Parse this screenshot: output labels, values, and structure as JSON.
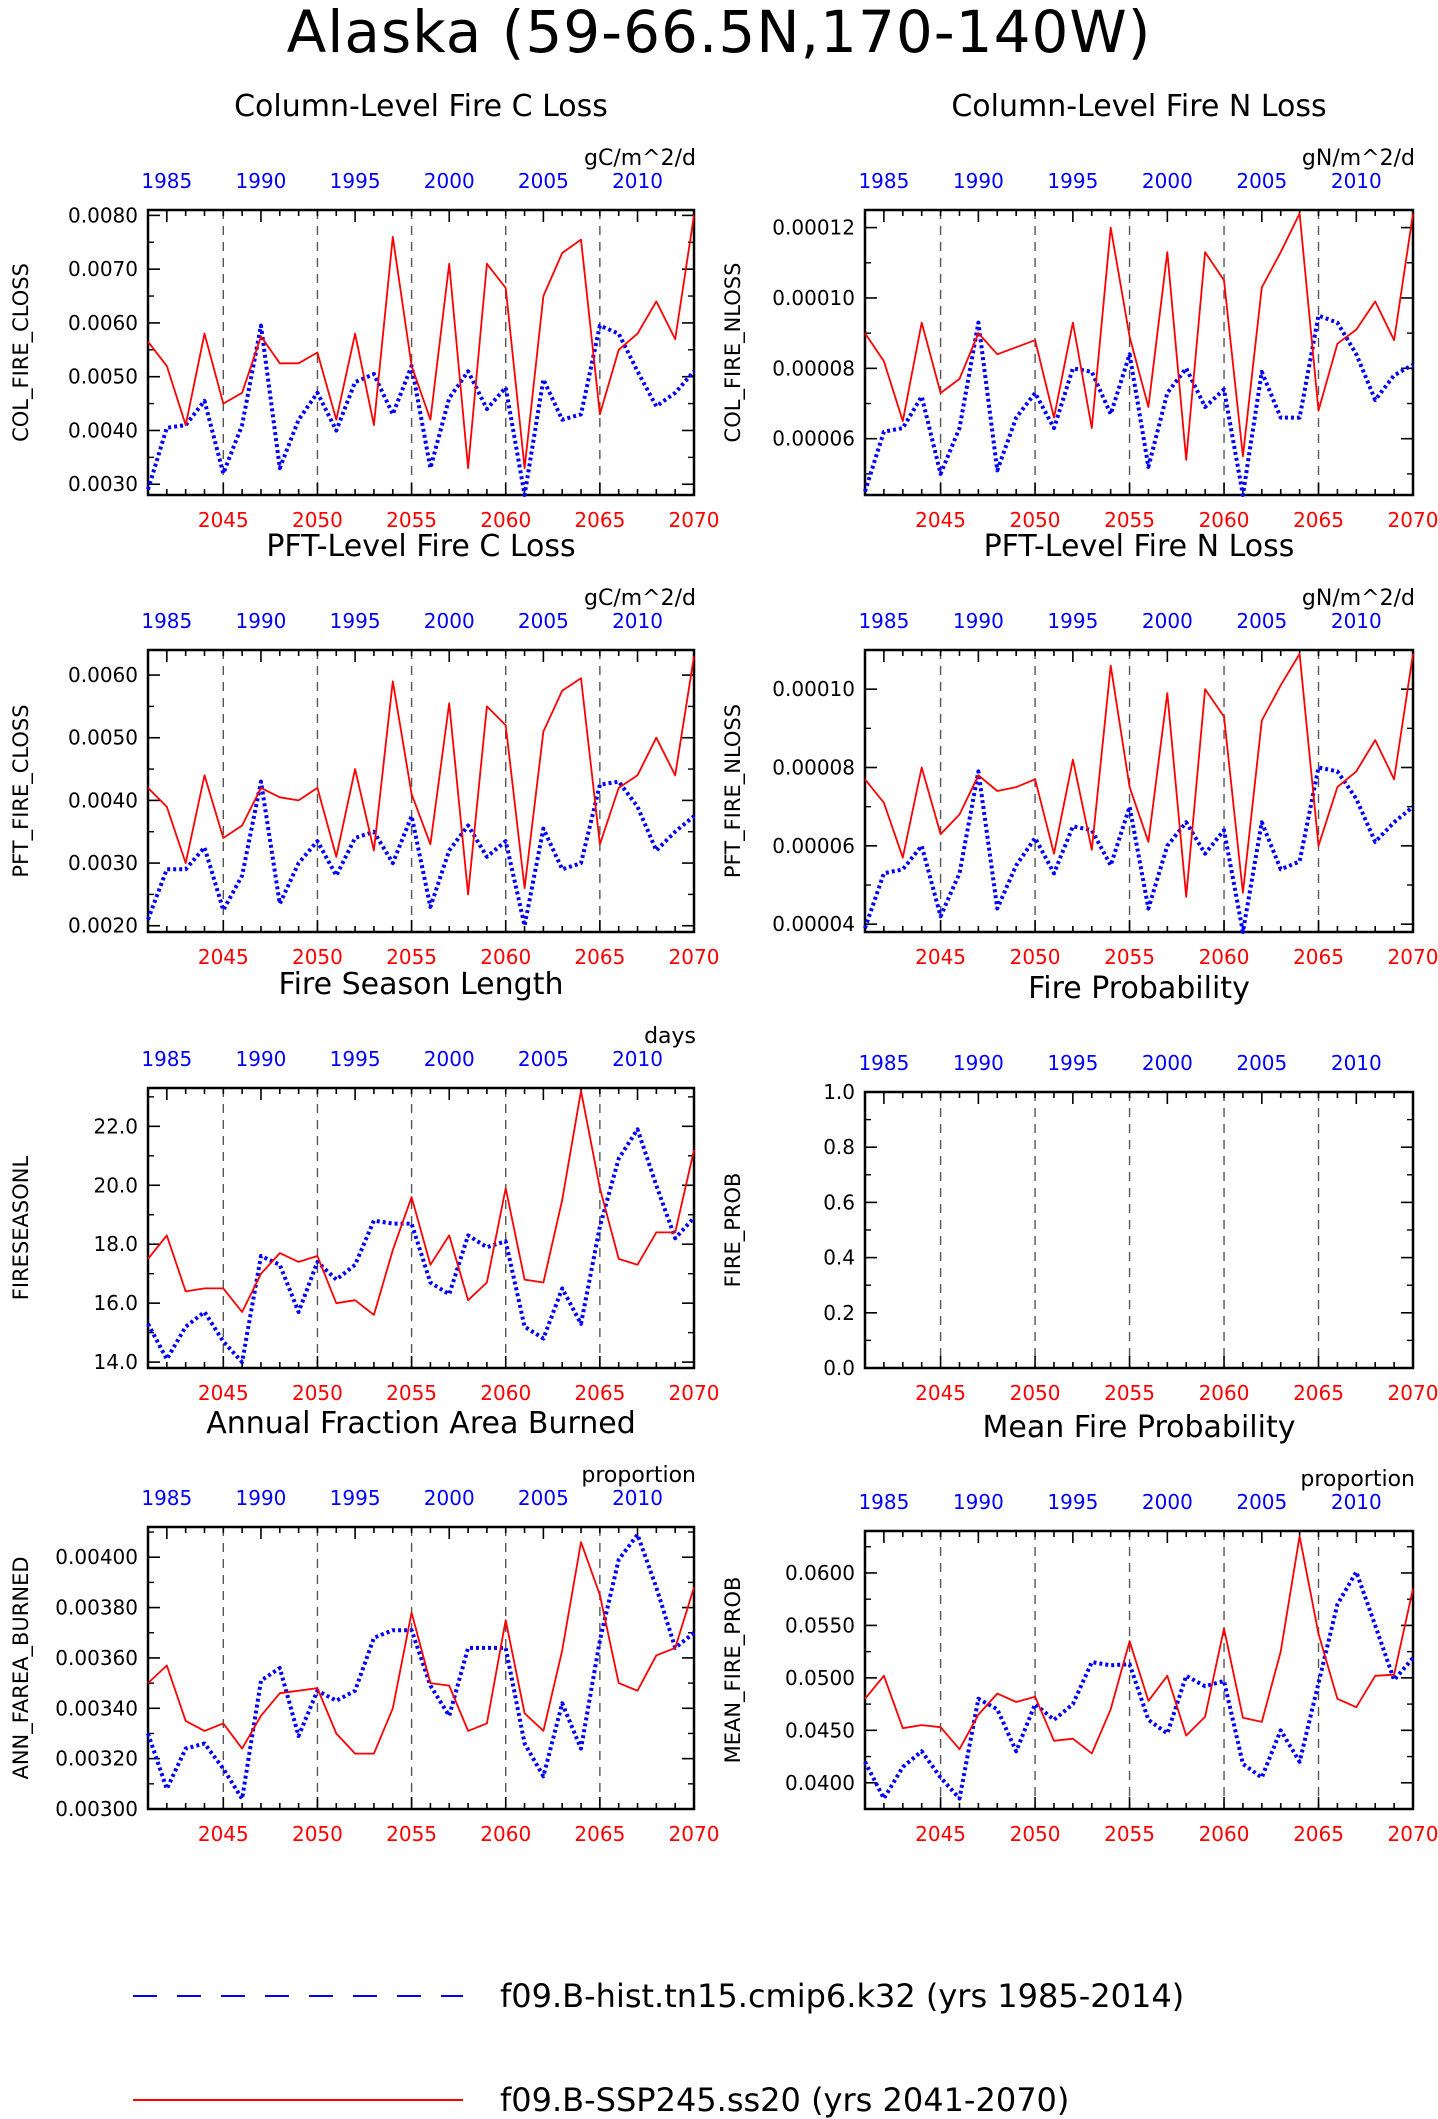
{
  "figure": {
    "title": "Alaska (59-66.5N,170-140W)"
  },
  "colors": {
    "hist": "#0000ff",
    "ssp": "#ff0000",
    "axis": "#000000",
    "grid": "#555555"
  },
  "legend": {
    "items": [
      {
        "label": "f09.B-hist.tn15.cmip6.k32 (yrs 1985-2014)",
        "color": "#0000ff",
        "style": "dashed"
      },
      {
        "label": "f09.B-SSP245.ss20 (yrs 2041-2070)",
        "color": "#ff0000",
        "style": "solid"
      }
    ]
  },
  "chart_data": [
    {
      "type": "line",
      "title": "Column-Level Fire C Loss",
      "units": "gC/m^2/d",
      "ylabel": "COL_FIRE_CLOSS",
      "ylim": [
        0.0028,
        0.0081
      ],
      "yticks": [
        0.003,
        0.004,
        0.005,
        0.006,
        0.007,
        0.008
      ],
      "ytick_labels": [
        "0.0030",
        "0.0040",
        "0.0050",
        "0.0060",
        "0.0070",
        "0.0080"
      ],
      "top_axis": {
        "range": [
          1984,
          2013
        ],
        "ticks": [
          1985,
          1990,
          1995,
          2000,
          2005,
          2010
        ]
      },
      "bottom_axis": {
        "range": [
          2041,
          2070
        ],
        "ticks": [
          2045,
          2050,
          2055,
          2060,
          2065,
          2070
        ]
      },
      "series": [
        {
          "name": "f09.B-hist.tn15.cmip6.k32",
          "color": "#0000ff",
          "dashed": true,
          "values": [
            0.0029,
            0.00405,
            0.0041,
            0.00455,
            0.0032,
            0.0041,
            0.00595,
            0.0033,
            0.0042,
            0.0047,
            0.004,
            0.0049,
            0.00505,
            0.0043,
            0.0052,
            0.0033,
            0.0046,
            0.0051,
            0.0044,
            0.0048,
            0.0028,
            0.00495,
            0.0042,
            0.0043,
            0.00595,
            0.0058,
            0.0051,
            0.00445,
            0.0047,
            0.0051
          ]
        },
        {
          "name": "f09.B-SSP245.ss20",
          "color": "#ff0000",
          "dashed": false,
          "values": [
            0.00565,
            0.0052,
            0.0041,
            0.0058,
            0.0045,
            0.0047,
            0.00575,
            0.00525,
            0.00525,
            0.00545,
            0.0042,
            0.0058,
            0.0041,
            0.0076,
            0.0052,
            0.0042,
            0.0071,
            0.0033,
            0.0071,
            0.00665,
            0.0033,
            0.0065,
            0.0073,
            0.00755,
            0.0043,
            0.0055,
            0.0058,
            0.0064,
            0.0057,
            0.008
          ]
        }
      ]
    },
    {
      "type": "line",
      "title": "Column-Level Fire N Loss",
      "units": "gN/m^2/d",
      "ylabel": "COL_FIRE_NLOSS",
      "ylim": [
        4.4e-05,
        0.000125
      ],
      "yticks": [
        6e-05,
        8e-05,
        0.0001,
        0.00012
      ],
      "ytick_labels": [
        "0.00006",
        "0.00008",
        "0.00010",
        "0.00012"
      ],
      "top_axis": {
        "range": [
          1984,
          2013
        ],
        "ticks": [
          1985,
          1990,
          1995,
          2000,
          2005,
          2010
        ]
      },
      "bottom_axis": {
        "range": [
          2041,
          2070
        ],
        "ticks": [
          2045,
          2050,
          2055,
          2060,
          2065,
          2070
        ]
      },
      "series": [
        {
          "name": "f09.B-hist.tn15.cmip6.k32",
          "color": "#0000ff",
          "dashed": true,
          "values": [
            4.5e-05,
            6.2e-05,
            6.3e-05,
            7.2e-05,
            5e-05,
            6.3e-05,
            9.3e-05,
            5.1e-05,
            6.6e-05,
            7.3e-05,
            6.3e-05,
            8e-05,
            7.9e-05,
            6.7e-05,
            8.4e-05,
            5.2e-05,
            7.3e-05,
            8e-05,
            6.9e-05,
            7.4e-05,
            4.4e-05,
            7.9e-05,
            6.6e-05,
            6.6e-05,
            9.5e-05,
            9.3e-05,
            8.4e-05,
            7.1e-05,
            7.8e-05,
            8.1e-05
          ]
        },
        {
          "name": "f09.B-SSP245.ss20",
          "color": "#ff0000",
          "dashed": false,
          "values": [
            9e-05,
            8.2e-05,
            6.5e-05,
            9.3e-05,
            7.3e-05,
            7.7e-05,
            9e-05,
            8.4e-05,
            8.6e-05,
            8.8e-05,
            6.6e-05,
            9.3e-05,
            6.3e-05,
            0.00012,
            8.9e-05,
            6.9e-05,
            0.000113,
            5.4e-05,
            0.000113,
            0.000105,
            5.5e-05,
            0.000103,
            0.000113,
            0.000124,
            6.8e-05,
            8.7e-05,
            9.1e-05,
            9.9e-05,
            8.8e-05,
            0.000124
          ]
        }
      ]
    },
    {
      "type": "line",
      "title": "PFT-Level Fire C Loss",
      "units": "gC/m^2/d",
      "ylabel": "PFT_FIRE_CLOSS",
      "ylim": [
        0.0019,
        0.0064
      ],
      "yticks": [
        0.002,
        0.003,
        0.004,
        0.005,
        0.006
      ],
      "ytick_labels": [
        "0.0020",
        "0.0030",
        "0.0040",
        "0.0050",
        "0.0060"
      ],
      "top_axis": {
        "range": [
          1984,
          2013
        ],
        "ticks": [
          1985,
          1990,
          1995,
          2000,
          2005,
          2010
        ]
      },
      "bottom_axis": {
        "range": [
          2041,
          2070
        ],
        "ticks": [
          2045,
          2050,
          2055,
          2060,
          2065,
          2070
        ]
      },
      "series": [
        {
          "name": "f09.B-hist.tn15.cmip6.k32",
          "color": "#0000ff",
          "dashed": true,
          "values": [
            0.0021,
            0.0029,
            0.0029,
            0.00325,
            0.00225,
            0.0028,
            0.0043,
            0.00235,
            0.003,
            0.00335,
            0.0028,
            0.0034,
            0.0035,
            0.003,
            0.00375,
            0.0023,
            0.0032,
            0.0036,
            0.0031,
            0.00335,
            0.002,
            0.00355,
            0.0029,
            0.003,
            0.00425,
            0.0043,
            0.0039,
            0.0032,
            0.0035,
            0.00375
          ]
        },
        {
          "name": "f09.B-SSP245.ss20",
          "color": "#ff0000",
          "dashed": false,
          "values": [
            0.0042,
            0.0039,
            0.003,
            0.0044,
            0.0034,
            0.0036,
            0.0042,
            0.00405,
            0.004,
            0.0042,
            0.0031,
            0.0045,
            0.0032,
            0.0059,
            0.0041,
            0.0033,
            0.00555,
            0.0025,
            0.0055,
            0.0052,
            0.0026,
            0.0051,
            0.00575,
            0.00595,
            0.0033,
            0.0042,
            0.0044,
            0.005,
            0.0044,
            0.0063
          ]
        }
      ]
    },
    {
      "type": "line",
      "title": "PFT-Level Fire N Loss",
      "units": "gN/m^2/d",
      "ylabel": "PFT_FIRE_NLOSS",
      "ylim": [
        3.8e-05,
        0.00011
      ],
      "yticks": [
        4e-05,
        6e-05,
        8e-05,
        0.0001
      ],
      "ytick_labels": [
        "0.00004",
        "0.00006",
        "0.00008",
        "0.00010"
      ],
      "top_axis": {
        "range": [
          1984,
          2013
        ],
        "ticks": [
          1985,
          1990,
          1995,
          2000,
          2005,
          2010
        ]
      },
      "bottom_axis": {
        "range": [
          2041,
          2070
        ],
        "ticks": [
          2045,
          2050,
          2055,
          2060,
          2065,
          2070
        ]
      },
      "series": [
        {
          "name": "f09.B-hist.tn15.cmip6.k32",
          "color": "#0000ff",
          "dashed": true,
          "values": [
            3.9e-05,
            5.3e-05,
            5.4e-05,
            6e-05,
            4.2e-05,
            5.3e-05,
            7.9e-05,
            4.4e-05,
            5.5e-05,
            6.2e-05,
            5.3e-05,
            6.5e-05,
            6.4e-05,
            5.5e-05,
            7e-05,
            4.4e-05,
            6e-05,
            6.6e-05,
            5.8e-05,
            6.4e-05,
            3.8e-05,
            6.6e-05,
            5.4e-05,
            5.6e-05,
            8e-05,
            7.9e-05,
            7.2e-05,
            6.1e-05,
            6.6e-05,
            7e-05
          ]
        },
        {
          "name": "f09.B-SSP245.ss20",
          "color": "#ff0000",
          "dashed": false,
          "values": [
            7.7e-05,
            7.1e-05,
            5.7e-05,
            8e-05,
            6.3e-05,
            6.8e-05,
            7.8e-05,
            7.4e-05,
            7.5e-05,
            7.7e-05,
            5.8e-05,
            8.2e-05,
            5.9e-05,
            0.000106,
            7.5e-05,
            6.1e-05,
            9.9e-05,
            4.7e-05,
            0.0001,
            9.3e-05,
            4.8e-05,
            9.2e-05,
            0.000101,
            0.000109,
            6e-05,
            7.5e-05,
            7.9e-05,
            8.7e-05,
            7.7e-05,
            0.000109
          ]
        }
      ]
    },
    {
      "type": "line",
      "title": "Fire Season Length",
      "units": "days",
      "ylabel": "FIRESEASONL",
      "ylim": [
        13.8,
        23.3
      ],
      "yticks": [
        14,
        16,
        18,
        20,
        22
      ],
      "ytick_labels": [
        "14.0",
        "16.0",
        "18.0",
        "20.0",
        "22.0"
      ],
      "top_axis": {
        "range": [
          1984,
          2013
        ],
        "ticks": [
          1985,
          1990,
          1995,
          2000,
          2005,
          2010
        ]
      },
      "bottom_axis": {
        "range": [
          2041,
          2070
        ],
        "ticks": [
          2045,
          2050,
          2055,
          2060,
          2065,
          2070
        ]
      },
      "series": [
        {
          "name": "f09.B-hist.tn15.cmip6.k32",
          "color": "#0000ff",
          "dashed": true,
          "values": [
            15.3,
            14.1,
            15.2,
            15.7,
            14.7,
            14.0,
            17.6,
            17.3,
            15.7,
            17.4,
            16.8,
            17.3,
            18.8,
            18.7,
            18.7,
            16.7,
            16.3,
            18.3,
            17.9,
            18.1,
            15.2,
            14.8,
            16.5,
            15.3,
            18.6,
            20.9,
            21.9,
            20.0,
            18.2,
            18.9
          ]
        },
        {
          "name": "f09.B-SSP245.ss20",
          "color": "#ff0000",
          "dashed": false,
          "values": [
            17.5,
            18.3,
            16.4,
            16.5,
            16.5,
            15.7,
            17.0,
            17.7,
            17.4,
            17.6,
            16.0,
            16.1,
            15.6,
            17.8,
            19.6,
            17.3,
            18.3,
            16.1,
            16.7,
            19.9,
            16.8,
            16.7,
            19.5,
            23.2,
            19.9,
            17.5,
            17.3,
            18.4,
            18.4,
            21.2
          ]
        }
      ]
    },
    {
      "type": "line",
      "title": "Fire Probability",
      "units": "",
      "ylabel": "FIRE_PROB",
      "ylim": [
        0.0,
        1.0
      ],
      "yticks": [
        0.0,
        0.2,
        0.4,
        0.6,
        0.8,
        1.0
      ],
      "ytick_labels": [
        "0.0",
        "0.2",
        "0.4",
        "0.6",
        "0.8",
        "1.0"
      ],
      "top_axis": {
        "range": [
          1984,
          2013
        ],
        "ticks": [
          1985,
          1990,
          1995,
          2000,
          2005,
          2010
        ]
      },
      "bottom_axis": {
        "range": [
          2041,
          2070
        ],
        "ticks": [
          2045,
          2050,
          2055,
          2060,
          2065,
          2070
        ]
      },
      "series": []
    },
    {
      "type": "line",
      "title": "Annual Fraction Area Burned",
      "units": "proportion",
      "ylabel": "ANN_FAREA_BURNED",
      "ylim": [
        0.003,
        0.00412
      ],
      "yticks": [
        0.003,
        0.0032,
        0.0034,
        0.0036,
        0.0038,
        0.004
      ],
      "ytick_labels": [
        "0.00300",
        "0.00320",
        "0.00340",
        "0.00360",
        "0.00380",
        "0.00400"
      ],
      "top_axis": {
        "range": [
          1984,
          2013
        ],
        "ticks": [
          1985,
          1990,
          1995,
          2000,
          2005,
          2010
        ]
      },
      "bottom_axis": {
        "range": [
          2041,
          2070
        ],
        "ticks": [
          2045,
          2050,
          2055,
          2060,
          2065,
          2070
        ]
      },
      "series": [
        {
          "name": "f09.B-hist.tn15.cmip6.k32",
          "color": "#0000ff",
          "dashed": true,
          "values": [
            0.0033,
            0.00308,
            0.00324,
            0.00326,
            0.00316,
            0.00304,
            0.00351,
            0.00356,
            0.00329,
            0.00347,
            0.00343,
            0.00347,
            0.00368,
            0.00371,
            0.00371,
            0.00349,
            0.00337,
            0.00364,
            0.00364,
            0.00364,
            0.00326,
            0.00313,
            0.00342,
            0.00324,
            0.00367,
            0.00399,
            0.00409,
            0.00388,
            0.00364,
            0.0037
          ]
        },
        {
          "name": "f09.B-SSP245.ss20",
          "color": "#ff0000",
          "dashed": false,
          "values": [
            0.0035,
            0.00357,
            0.00335,
            0.00331,
            0.00334,
            0.00324,
            0.00337,
            0.00346,
            0.00347,
            0.00348,
            0.0033,
            0.00322,
            0.00322,
            0.0034,
            0.00378,
            0.0035,
            0.00349,
            0.00331,
            0.00334,
            0.00375,
            0.00338,
            0.00331,
            0.00363,
            0.00406,
            0.00385,
            0.0035,
            0.00347,
            0.00361,
            0.00364,
            0.00388
          ]
        }
      ]
    },
    {
      "type": "line",
      "title": "Mean Fire Probability",
      "units": "proportion",
      "ylabel": "MEAN_FIRE_PROB",
      "ylim": [
        0.0375,
        0.064
      ],
      "yticks": [
        0.04,
        0.045,
        0.05,
        0.055,
        0.06
      ],
      "ytick_labels": [
        "0.0400",
        "0.0450",
        "0.0500",
        "0.0550",
        "0.0600"
      ],
      "top_axis": {
        "range": [
          1984,
          2013
        ],
        "ticks": [
          1985,
          1990,
          1995,
          2000,
          2005,
          2010
        ]
      },
      "bottom_axis": {
        "range": [
          2041,
          2070
        ],
        "ticks": [
          2045,
          2050,
          2055,
          2060,
          2065,
          2070
        ]
      },
      "series": [
        {
          "name": "f09.B-hist.tn15.cmip6.k32",
          "color": "#0000ff",
          "dashed": true,
          "values": [
            0.042,
            0.0385,
            0.0415,
            0.043,
            0.0405,
            0.0385,
            0.048,
            0.047,
            0.043,
            0.0475,
            0.046,
            0.0475,
            0.0515,
            0.0512,
            0.0513,
            0.046,
            0.0447,
            0.0502,
            0.0492,
            0.0497,
            0.0418,
            0.0405,
            0.045,
            0.042,
            0.0495,
            0.057,
            0.0601,
            0.055,
            0.0498,
            0.0519
          ]
        },
        {
          "name": "f09.B-SSP245.ss20",
          "color": "#ff0000",
          "dashed": false,
          "values": [
            0.048,
            0.0502,
            0.0452,
            0.0455,
            0.0453,
            0.0432,
            0.0465,
            0.0485,
            0.0477,
            0.0482,
            0.044,
            0.0442,
            0.0428,
            0.047,
            0.0535,
            0.0478,
            0.0502,
            0.0445,
            0.0463,
            0.0547,
            0.0462,
            0.0458,
            0.0525,
            0.0635,
            0.0542,
            0.048,
            0.0472,
            0.0502,
            0.0503,
            0.0585
          ]
        }
      ]
    }
  ]
}
